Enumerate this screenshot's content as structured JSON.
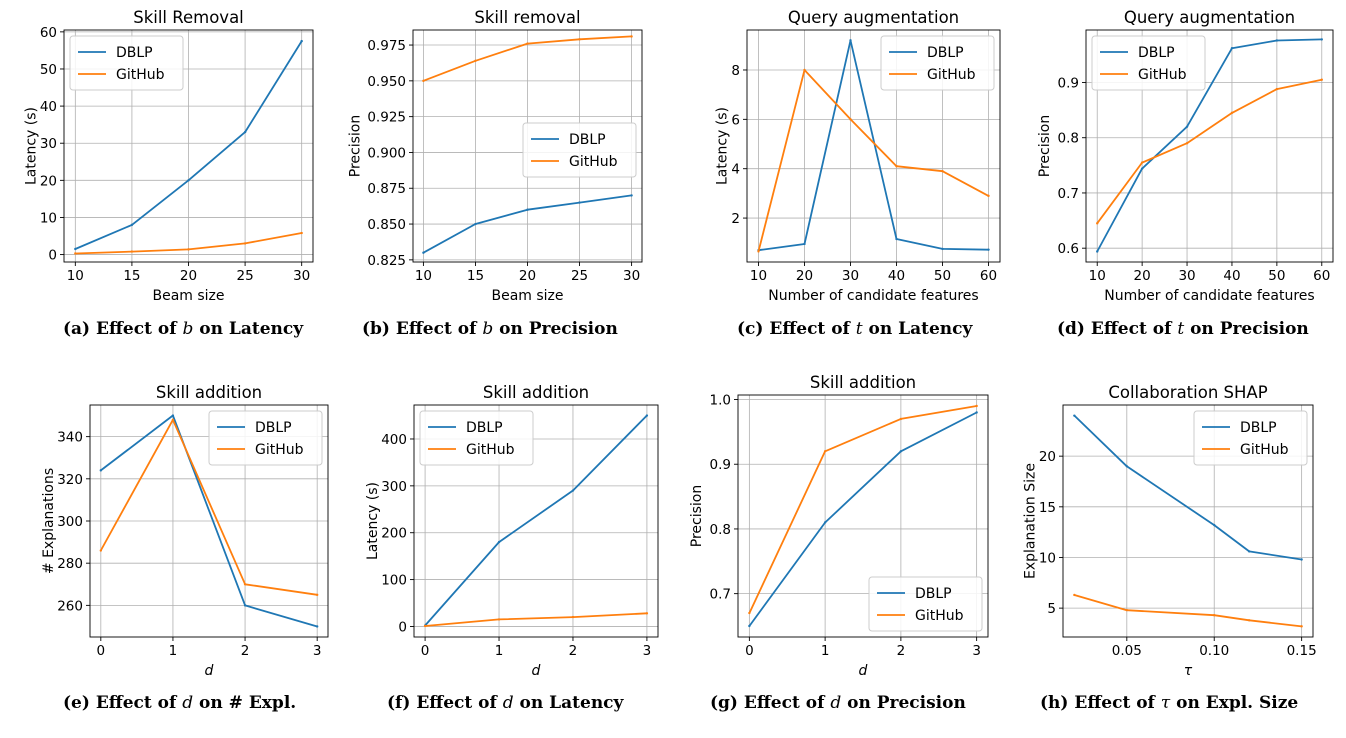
{
  "colors": {
    "DBLP": "#1f77b4",
    "GitHub": "#ff7f0e",
    "grid": "#b0b0b0"
  },
  "chart_data": [
    {
      "id": "a",
      "type": "line",
      "title": "Skill Removal",
      "xlabel": "Beam size",
      "xlabel_italic": false,
      "ylabel": "Latency (s)",
      "xlim": [
        9,
        31
      ],
      "ylim": [
        -2,
        60.5
      ],
      "xticks": [
        10,
        15,
        20,
        25,
        30
      ],
      "xtick_labels": [
        "10",
        "15",
        "20",
        "25",
        "30"
      ],
      "yticks": [
        0,
        10,
        20,
        30,
        40,
        50,
        60
      ],
      "ytick_labels": [
        "0",
        "10",
        "20",
        "30",
        "40",
        "50",
        "60"
      ],
      "x": [
        10,
        15,
        20,
        25,
        30
      ],
      "series": [
        {
          "name": "DBLP",
          "values": [
            1.5,
            8,
            20,
            33,
            57.5
          ]
        },
        {
          "name": "GitHub",
          "values": [
            0.3,
            0.8,
            1.4,
            3,
            5.8
          ]
        }
      ],
      "legend": "upper-left",
      "caption": {
        "pre": "(a) Effect of ",
        "sym": "b",
        "post": " on Latency"
      }
    },
    {
      "id": "b",
      "type": "line",
      "title": "Skill removal",
      "xlabel": "Beam size",
      "xlabel_italic": false,
      "ylabel": "Precision",
      "xlim": [
        9,
        31
      ],
      "ylim": [
        0.8235,
        0.9855
      ],
      "xticks": [
        10,
        15,
        20,
        25,
        30
      ],
      "xtick_labels": [
        "10",
        "15",
        "20",
        "25",
        "30"
      ],
      "yticks": [
        0.825,
        0.85,
        0.875,
        0.9,
        0.925,
        0.95,
        0.975
      ],
      "ytick_labels": [
        "0.825",
        "0.850",
        "0.875",
        "0.900",
        "0.925",
        "0.950",
        "0.975"
      ],
      "x": [
        10,
        15,
        20,
        25,
        30
      ],
      "series": [
        {
          "name": "DBLP",
          "values": [
            0.83,
            0.85,
            0.86,
            0.865,
            0.87
          ]
        },
        {
          "name": "GitHub",
          "values": [
            0.95,
            0.964,
            0.976,
            0.979,
            0.981
          ]
        }
      ],
      "legend": "center-right",
      "caption": {
        "pre": "(b) Effect of ",
        "sym": "b",
        "post": " on Precision"
      }
    },
    {
      "id": "c",
      "type": "line",
      "title": "Query augmentation",
      "xlabel": "Number of candidate features",
      "xlabel_italic": false,
      "ylabel": "Latency (s)",
      "xlim": [
        7.5,
        62.5
      ],
      "ylim": [
        0.22,
        9.62
      ],
      "xticks": [
        10,
        20,
        30,
        40,
        50,
        60
      ],
      "xtick_labels": [
        "10",
        "20",
        "30",
        "40",
        "50",
        "60"
      ],
      "yticks": [
        2,
        4,
        6,
        8
      ],
      "ytick_labels": [
        "2",
        "4",
        "6",
        "8"
      ],
      "x": [
        10,
        20,
        30,
        40,
        50,
        60
      ],
      "series": [
        {
          "name": "DBLP",
          "values": [
            0.7,
            0.95,
            9.2,
            1.15,
            0.75,
            0.72
          ]
        },
        {
          "name": "GitHub",
          "values": [
            0.65,
            8.0,
            6.0,
            4.1,
            3.9,
            2.9
          ]
        }
      ],
      "legend": "upper-right",
      "caption": {
        "pre": "(c) Effect of ",
        "sym": "t",
        "post": " on Latency"
      }
    },
    {
      "id": "d",
      "type": "line",
      "title": "Query augmentation",
      "xlabel": "Number of candidate features",
      "xlabel_italic": false,
      "ylabel": "Precision",
      "xlim": [
        7.5,
        62.5
      ],
      "ylim": [
        0.575,
        0.995
      ],
      "xticks": [
        10,
        20,
        30,
        40,
        50,
        60
      ],
      "xtick_labels": [
        "10",
        "20",
        "30",
        "40",
        "50",
        "60"
      ],
      "yticks": [
        0.6,
        0.7,
        0.8,
        0.9
      ],
      "ytick_labels": [
        "0.6",
        "0.7",
        "0.8",
        "0.9"
      ],
      "x": [
        10,
        20,
        30,
        40,
        50,
        60
      ],
      "series": [
        {
          "name": "DBLP",
          "values": [
            0.594,
            0.744,
            0.82,
            0.962,
            0.976,
            0.978
          ]
        },
        {
          "name": "GitHub",
          "values": [
            0.645,
            0.755,
            0.79,
            0.845,
            0.888,
            0.905
          ]
        }
      ],
      "legend": "upper-left",
      "caption": {
        "pre": "(d) Effect of ",
        "sym": "t",
        "post": " on Precision"
      }
    },
    {
      "id": "e",
      "type": "line",
      "title": "Skill addition",
      "xlabel": "d",
      "xlabel_italic": true,
      "ylabel": "# Explanations",
      "xlim": [
        -0.15,
        3.15
      ],
      "ylim": [
        245,
        355
      ],
      "xticks": [
        0,
        1,
        2,
        3
      ],
      "xtick_labels": [
        "0",
        "1",
        "2",
        "3"
      ],
      "yticks": [
        260,
        280,
        300,
        320,
        340
      ],
      "ytick_labels": [
        "260",
        "280",
        "300",
        "320",
        "340"
      ],
      "x": [
        0,
        1,
        2,
        3
      ],
      "series": [
        {
          "name": "DBLP",
          "values": [
            324,
            350,
            260,
            250
          ]
        },
        {
          "name": "GitHub",
          "values": [
            286,
            348,
            270,
            265
          ]
        }
      ],
      "legend": "upper-right",
      "caption": {
        "pre": "(e) Effect of ",
        "sym": "d",
        "post": " on # Expl."
      }
    },
    {
      "id": "f",
      "type": "line",
      "title": "Skill addition",
      "xlabel": "d",
      "xlabel_italic": true,
      "ylabel": "Latency (s)",
      "xlim": [
        -0.15,
        3.15
      ],
      "ylim": [
        -22.5,
        472.5
      ],
      "xticks": [
        0,
        1,
        2,
        3
      ],
      "xtick_labels": [
        "0",
        "1",
        "2",
        "3"
      ],
      "yticks": [
        0,
        100,
        200,
        300,
        400
      ],
      "ytick_labels": [
        "0",
        "100",
        "200",
        "300",
        "400"
      ],
      "x": [
        0,
        1,
        2,
        3
      ],
      "series": [
        {
          "name": "DBLP",
          "values": [
            2,
            180,
            290,
            450
          ]
        },
        {
          "name": "GitHub",
          "values": [
            1,
            15,
            20,
            28
          ]
        }
      ],
      "legend": "upper-left",
      "caption": {
        "pre": "(f) Effect of ",
        "sym": "d",
        "post": " on Latency"
      }
    },
    {
      "id": "g",
      "type": "line",
      "title": "Skill addition",
      "xlabel": "d",
      "xlabel_italic": true,
      "ylabel": "Precision",
      "xlim": [
        -0.15,
        3.15
      ],
      "ylim": [
        0.633,
        1.007
      ],
      "xticks": [
        0,
        1,
        2,
        3
      ],
      "xtick_labels": [
        "0",
        "1",
        "2",
        "3"
      ],
      "yticks": [
        0.7,
        0.8,
        0.9,
        1.0
      ],
      "ytick_labels": [
        "0.7",
        "0.8",
        "0.9",
        "1.0"
      ],
      "x": [
        0,
        1,
        2,
        3
      ],
      "series": [
        {
          "name": "DBLP",
          "values": [
            0.65,
            0.81,
            0.92,
            0.98
          ]
        },
        {
          "name": "GitHub",
          "values": [
            0.67,
            0.92,
            0.97,
            0.99
          ]
        }
      ],
      "legend": "lower-right",
      "caption": {
        "pre": "(g) Effect of ",
        "sym": "d",
        "post": " on Precision"
      }
    },
    {
      "id": "h",
      "type": "line",
      "title": "Collaboration SHAP",
      "xlabel": "τ",
      "xlabel_italic": true,
      "ylabel": "Explanation Size",
      "xlim": [
        0.0135,
        0.1565
      ],
      "ylim": [
        2.15,
        25.05
      ],
      "xticks": [
        0.05,
        0.1,
        0.15
      ],
      "xtick_labels": [
        "0.05",
        "0.10",
        "0.15"
      ],
      "yticks": [
        5,
        10,
        15,
        20
      ],
      "ytick_labels": [
        "5",
        "10",
        "15",
        "20"
      ],
      "x": [
        0.02,
        0.05,
        0.1,
        0.12,
        0.15
      ],
      "series": [
        {
          "name": "DBLP",
          "values": [
            24,
            19,
            13.2,
            10.6,
            9.8
          ]
        },
        {
          "name": "GitHub",
          "values": [
            6.3,
            4.8,
            4.3,
            3.8,
            3.2
          ]
        }
      ],
      "legend": "upper-right",
      "caption": {
        "pre": "(h) Effect of ",
        "sym": "τ",
        "post": " on Expl. Size"
      }
    }
  ]
}
